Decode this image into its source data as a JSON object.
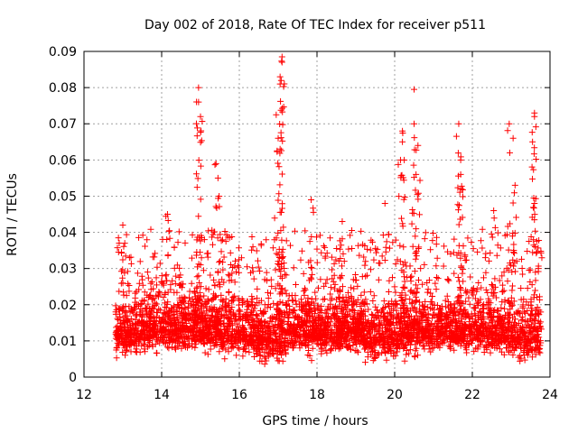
{
  "chart_data": {
    "type": "scatter",
    "title": "Day 002 of 2018, Rate Of TEC Index for receiver p511",
    "xlabel": "GPS time / hours",
    "ylabel": "ROTI / TECUs",
    "xlim": [
      12,
      24
    ],
    "ylim": [
      0,
      0.09
    ],
    "xticks": [
      12,
      14,
      16,
      18,
      20,
      22,
      24
    ],
    "yticks": [
      0,
      0.01,
      0.02,
      0.03,
      0.04,
      0.05,
      0.06,
      0.07,
      0.08,
      0.09
    ],
    "xtick_labels": [
      "12",
      "14",
      "16",
      "18",
      "20",
      "22",
      "24"
    ],
    "ytick_labels": [
      "0",
      "0.01",
      "0.02",
      "0.03",
      "0.04",
      "0.05",
      "0.06",
      "0.07",
      "0.08",
      "0.09"
    ],
    "grid": true,
    "marker": "+",
    "series_color": "#ff0000",
    "data_range": {
      "x_min": 12.8,
      "x_max": 23.8
    },
    "notable_points": [
      {
        "x": 13.0,
        "y": 0.042
      },
      {
        "x": 13.05,
        "y": 0.037
      },
      {
        "x": 14.15,
        "y": 0.045
      },
      {
        "x": 14.95,
        "y": 0.08
      },
      {
        "x": 14.95,
        "y": 0.076
      },
      {
        "x": 15.0,
        "y": 0.072
      },
      {
        "x": 15.4,
        "y": 0.059
      },
      {
        "x": 15.45,
        "y": 0.055
      },
      {
        "x": 16.35,
        "y": 0.036
      },
      {
        "x": 17.1,
        "y": 0.0885
      },
      {
        "x": 17.1,
        "y": 0.087
      },
      {
        "x": 17.05,
        "y": 0.083
      },
      {
        "x": 17.05,
        "y": 0.081
      },
      {
        "x": 16.95,
        "y": 0.0725
      },
      {
        "x": 17.0,
        "y": 0.066
      },
      {
        "x": 17.05,
        "y": 0.063
      },
      {
        "x": 17.85,
        "y": 0.049
      },
      {
        "x": 18.65,
        "y": 0.043
      },
      {
        "x": 19.75,
        "y": 0.048
      },
      {
        "x": 20.2,
        "y": 0.068
      },
      {
        "x": 20.2,
        "y": 0.065
      },
      {
        "x": 20.15,
        "y": 0.06
      },
      {
        "x": 20.5,
        "y": 0.0795
      },
      {
        "x": 20.5,
        "y": 0.07
      },
      {
        "x": 20.6,
        "y": 0.064
      },
      {
        "x": 20.55,
        "y": 0.056
      },
      {
        "x": 21.65,
        "y": 0.07
      },
      {
        "x": 21.7,
        "y": 0.06
      },
      {
        "x": 21.7,
        "y": 0.056
      },
      {
        "x": 22.55,
        "y": 0.046
      },
      {
        "x": 22.95,
        "y": 0.07
      },
      {
        "x": 23.05,
        "y": 0.066
      },
      {
        "x": 23.1,
        "y": 0.053
      },
      {
        "x": 23.6,
        "y": 0.073
      },
      {
        "x": 23.6,
        "y": 0.072
      },
      {
        "x": 23.55,
        "y": 0.065
      },
      {
        "x": 23.6,
        "y": 0.048
      },
      {
        "x": 23.7,
        "y": 0.03
      }
    ]
  }
}
